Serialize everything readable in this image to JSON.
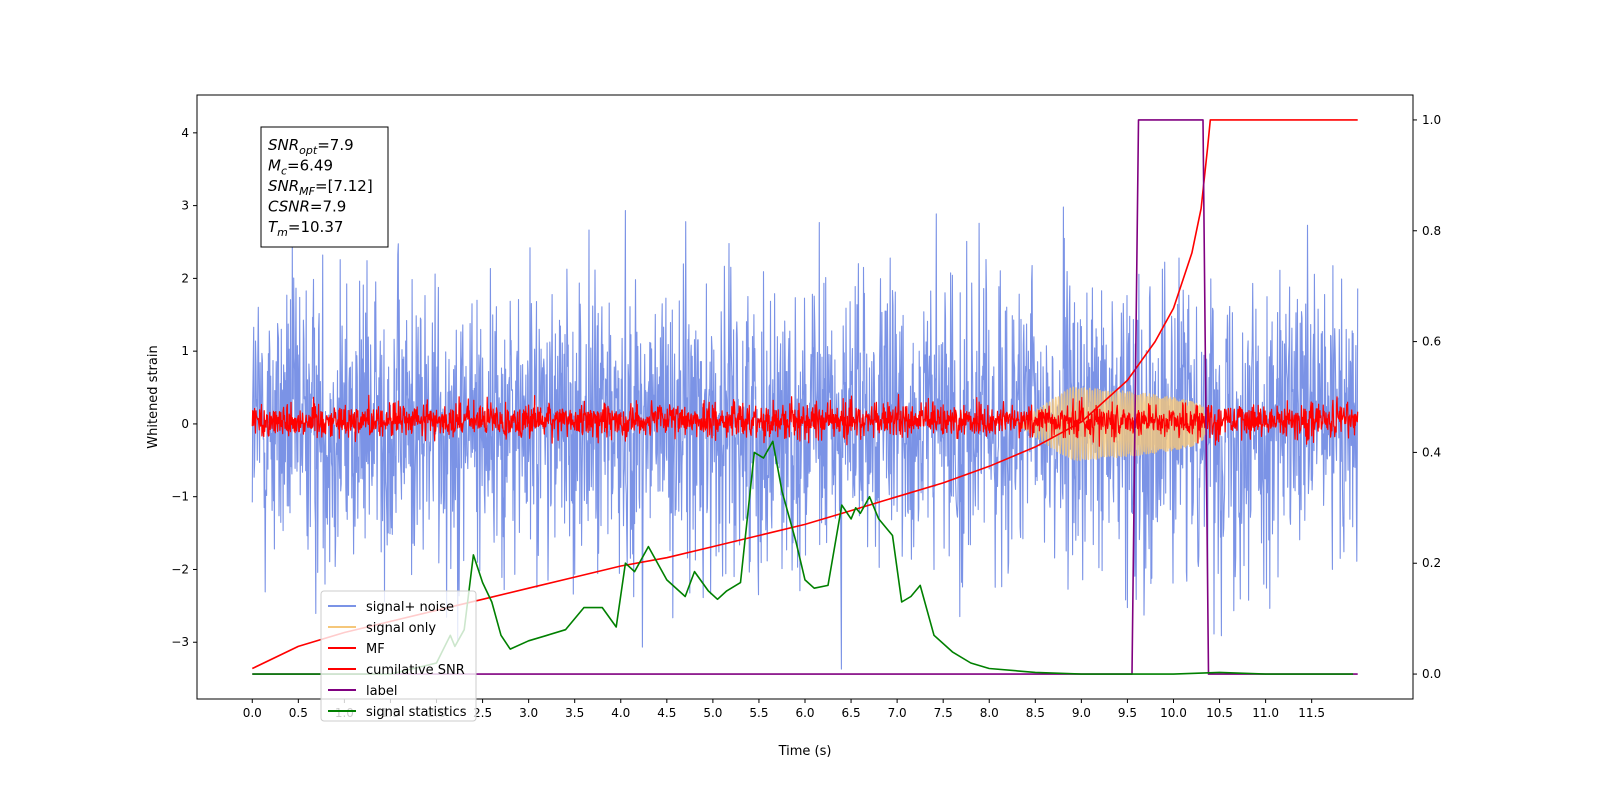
{
  "chart_data": {
    "type": "line",
    "xlabel": "Time (s)",
    "ylabel": "Whitened strain",
    "xlim": [
      -0.6,
      12.6
    ],
    "ylim_left": [
      -3.78,
      4.52
    ],
    "ylim_right": [
      -0.045,
      1.045
    ],
    "x_ticks": [
      "0.0",
      "0.5",
      "1.0",
      "1.5",
      "2.0",
      "2.5",
      "3.0",
      "3.5",
      "4.0",
      "4.5",
      "5.0",
      "5.5",
      "6.0",
      "6.5",
      "7.0",
      "7.5",
      "8.0",
      "8.5",
      "9.0",
      "9.5",
      "10.0",
      "10.5",
      "11.0",
      "11.5"
    ],
    "y_ticks_left": [
      "-3",
      "-2",
      "-1",
      "0",
      "1",
      "2",
      "3",
      "4"
    ],
    "y_ticks_right": [
      "0.0",
      "0.2",
      "0.4",
      "0.6",
      "0.8",
      "1.0"
    ],
    "annotation": {
      "lines": [
        {
          "sym": "SNR",
          "sub": "opt",
          "val": "=7.9"
        },
        {
          "sym": "M",
          "sub": "c",
          "val": "=6.49"
        },
        {
          "sym": "SNR",
          "sub": "MF",
          "val": "=[7.12]"
        },
        {
          "sym": "CSNR",
          "sub": "",
          "val": "=7.9"
        },
        {
          "sym": "T",
          "sub": "m",
          "val": "=10.37"
        }
      ]
    },
    "legend": {
      "placement": "lower-left",
      "entries": [
        {
          "label": "signal+ noise",
          "color": "#7b93e6"
        },
        {
          "label": "signal only",
          "color": "#f5c77a"
        },
        {
          "label": "MF",
          "color": "#ff0000"
        },
        {
          "label": "cumilative SNR",
          "color": "#ff0000"
        },
        {
          "label": "label",
          "color": "#800080"
        },
        {
          "label": "signal statistics",
          "color": "#008000"
        }
      ]
    },
    "series": [
      {
        "name": "signal+ noise",
        "axis": "left",
        "color": "#7b93e6",
        "kind": "noise",
        "x_range": [
          0.0,
          12.0
        ],
        "mean": 0.0,
        "std": 1.0
      },
      {
        "name": "signal only",
        "axis": "left",
        "color": "#f5c77a",
        "kind": "chirp",
        "x_range": [
          8.3,
          10.37
        ],
        "peak_amplitude": 0.55
      },
      {
        "name": "MF",
        "axis": "left",
        "color": "#ff0000",
        "kind": "noise",
        "x_range": [
          0.0,
          12.0
        ],
        "mean": 0.05,
        "std": 0.12
      },
      {
        "name": "cumilative SNR",
        "axis": "right",
        "color": "#ff0000",
        "x": [
          0.0,
          0.5,
          1.0,
          1.5,
          2.0,
          2.5,
          3.0,
          3.5,
          4.0,
          4.5,
          5.0,
          5.5,
          6.0,
          6.5,
          7.0,
          7.5,
          8.0,
          8.5,
          9.0,
          9.5,
          9.8,
          10.0,
          10.2,
          10.3,
          10.37,
          10.4,
          12.0
        ],
        "y": [
          0.01,
          0.05,
          0.075,
          0.095,
          0.115,
          0.135,
          0.155,
          0.175,
          0.195,
          0.21,
          0.23,
          0.25,
          0.27,
          0.295,
          0.32,
          0.345,
          0.375,
          0.41,
          0.455,
          0.53,
          0.6,
          0.66,
          0.76,
          0.84,
          0.95,
          1.0,
          1.0
        ]
      },
      {
        "name": "label",
        "axis": "right",
        "color": "#800080",
        "x": [
          0.0,
          9.55,
          9.62,
          10.32,
          10.38,
          12.0
        ],
        "y": [
          0.0,
          0.0,
          1.0,
          1.0,
          0.0,
          0.0
        ]
      },
      {
        "name": "signal statistics",
        "axis": "right",
        "color": "#008000",
        "x": [
          0.0,
          1.5,
          2.0,
          2.15,
          2.2,
          2.3,
          2.4,
          2.5,
          2.6,
          2.7,
          2.8,
          3.0,
          3.2,
          3.4,
          3.6,
          3.8,
          3.95,
          4.05,
          4.15,
          4.3,
          4.5,
          4.7,
          4.8,
          4.95,
          5.05,
          5.15,
          5.3,
          5.45,
          5.55,
          5.65,
          5.75,
          5.9,
          6.0,
          6.1,
          6.25,
          6.4,
          6.5,
          6.55,
          6.6,
          6.7,
          6.8,
          6.95,
          7.05,
          7.15,
          7.25,
          7.4,
          7.6,
          7.8,
          8.0,
          8.5,
          9.0,
          9.5,
          10.0,
          10.5,
          11.0,
          11.5,
          11.95
        ],
        "y": [
          0.0,
          0.0,
          0.02,
          0.07,
          0.05,
          0.08,
          0.215,
          0.165,
          0.13,
          0.07,
          0.045,
          0.06,
          0.07,
          0.08,
          0.12,
          0.12,
          0.085,
          0.2,
          0.185,
          0.23,
          0.17,
          0.14,
          0.185,
          0.15,
          0.135,
          0.15,
          0.165,
          0.4,
          0.39,
          0.42,
          0.33,
          0.24,
          0.17,
          0.155,
          0.16,
          0.305,
          0.28,
          0.3,
          0.29,
          0.32,
          0.28,
          0.25,
          0.13,
          0.14,
          0.16,
          0.07,
          0.04,
          0.02,
          0.01,
          0.003,
          0.0,
          0.0,
          0.0,
          0.003,
          0.0,
          0.0,
          0.0
        ]
      }
    ]
  }
}
